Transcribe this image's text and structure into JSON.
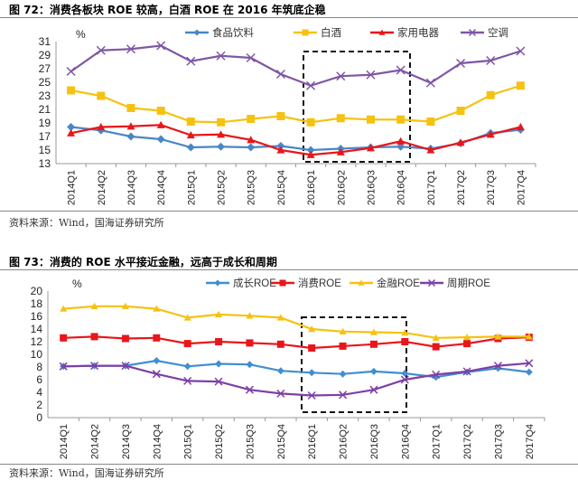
{
  "chart_data": [
    {
      "type": "line",
      "title": "图 72：消费各板块 ROE 较高，白酒 ROE 在 2016 年筑底企稳",
      "ylabel": "%",
      "ylim": [
        13,
        31
      ],
      "yticks": [
        13,
        15,
        17,
        19,
        21,
        23,
        25,
        27,
        29,
        31
      ],
      "categories": [
        "2014Q1",
        "2014Q2",
        "2014Q3",
        "2014Q4",
        "2015Q1",
        "2015Q2",
        "2015Q3",
        "2015Q4",
        "2016Q1",
        "2016Q2",
        "2016Q3",
        "2016Q4",
        "2017Q1",
        "2017Q2",
        "2017Q3",
        "2017Q4"
      ],
      "legend": "top",
      "highlight": [
        "2016Q1",
        "2016Q4"
      ],
      "series": [
        {
          "name": "食品饮料",
          "color": "#4a86c5",
          "marker": "diamond",
          "values": [
            18.4,
            17.9,
            17.0,
            16.6,
            15.4,
            15.5,
            15.4,
            15.6,
            15.0,
            15.2,
            15.4,
            15.5,
            15.2,
            16.0,
            17.5,
            18.0
          ]
        },
        {
          "name": "白酒",
          "color": "#f5c211",
          "marker": "square",
          "values": [
            23.8,
            23.0,
            21.2,
            20.8,
            19.2,
            19.1,
            19.6,
            20.0,
            19.1,
            19.7,
            19.5,
            19.5,
            19.2,
            20.8,
            23.1,
            24.5
          ]
        },
        {
          "name": "家用电器",
          "color": "#e8161b",
          "marker": "triangle",
          "values": [
            17.5,
            18.4,
            18.5,
            18.7,
            17.2,
            17.3,
            16.5,
            15.0,
            14.3,
            14.7,
            15.3,
            16.3,
            15.0,
            16.1,
            17.3,
            18.4
          ]
        },
        {
          "name": "空调",
          "color": "#7e57a6",
          "marker": "x",
          "values": [
            26.6,
            29.7,
            29.9,
            30.4,
            28.1,
            28.9,
            28.6,
            26.2,
            24.5,
            25.9,
            26.1,
            26.8,
            24.9,
            27.8,
            28.2,
            29.6
          ]
        }
      ],
      "source": "资料来源：Wind，国海证券研究所"
    },
    {
      "type": "line",
      "title": "图 73：消费的 ROE 水平接近金融，远高于成长和周期",
      "ylabel": "%",
      "ylim": [
        0,
        20
      ],
      "yticks": [
        0,
        2,
        4,
        6,
        8,
        10,
        12,
        14,
        16,
        18,
        20
      ],
      "categories": [
        "2014Q1",
        "2014Q2",
        "2014Q3",
        "2014Q4",
        "2015Q1",
        "2015Q2",
        "2015Q3",
        "2015Q4",
        "2016Q1",
        "2016Q2",
        "2016Q3",
        "2016Q4",
        "2017Q1",
        "2017Q2",
        "2017Q3",
        "2017Q4"
      ],
      "legend": "top",
      "highlight": [
        "2016Q1",
        "2016Q4"
      ],
      "series": [
        {
          "name": "成长ROE",
          "color": "#3f8fd2",
          "marker": "diamond",
          "values": [
            8.1,
            8.2,
            8.2,
            9.0,
            8.1,
            8.5,
            8.4,
            7.4,
            7.1,
            6.9,
            7.3,
            7.0,
            6.4,
            7.2,
            7.8,
            7.2
          ]
        },
        {
          "name": "消费ROE",
          "color": "#e8161b",
          "marker": "square",
          "values": [
            12.6,
            12.8,
            12.5,
            12.6,
            11.7,
            12.0,
            11.8,
            11.6,
            11.0,
            11.3,
            11.6,
            12.0,
            11.2,
            11.7,
            12.5,
            12.7
          ]
        },
        {
          "name": "金融ROE",
          "color": "#f5c211",
          "marker": "triangle",
          "values": [
            17.2,
            17.6,
            17.6,
            17.2,
            15.8,
            16.3,
            16.1,
            15.8,
            14.0,
            13.6,
            13.5,
            13.4,
            12.6,
            12.7,
            12.8,
            12.8
          ]
        },
        {
          "name": "周期ROE",
          "color": "#7e3fa6",
          "marker": "x",
          "values": [
            8.1,
            8.2,
            8.2,
            6.9,
            5.8,
            5.7,
            4.4,
            3.8,
            3.5,
            3.6,
            4.4,
            6.0,
            6.8,
            7.3,
            8.2,
            8.6
          ]
        }
      ],
      "source": "资料来源：Wind，国海证券研究所"
    }
  ]
}
